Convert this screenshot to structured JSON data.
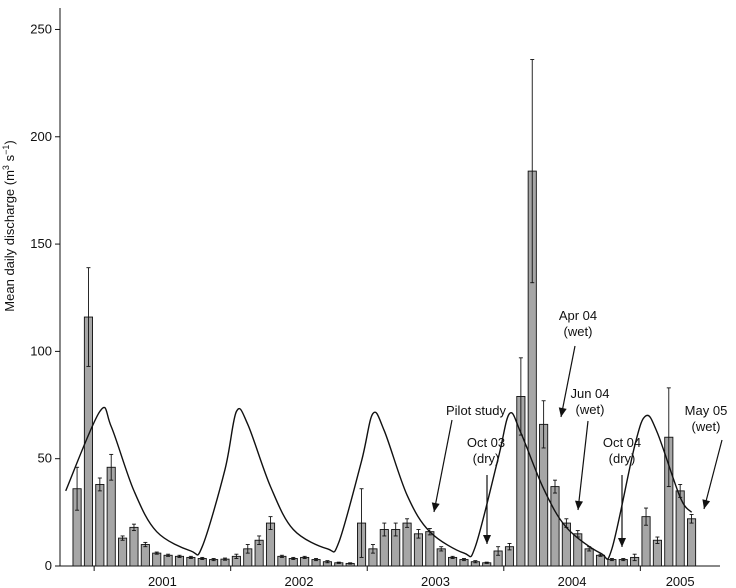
{
  "chart_data": {
    "type": "bar",
    "title": "",
    "xlabel": "",
    "ylabel": "Mean daily discharge (m³ s⁻¹)",
    "ylabel_parts": {
      "pre": "Mean daily discharge (m",
      "sup1": "3",
      "mid": " s",
      "sup2": "−1",
      "post": ")"
    },
    "ylim": [
      0,
      260
    ],
    "yticks": [
      0,
      50,
      100,
      150,
      200,
      250
    ],
    "year_labels": [
      "2001",
      "2002",
      "2003",
      "2004",
      "2005"
    ],
    "year_boundaries": [
      "2001-01",
      "2002-01",
      "2003-01",
      "2004-01",
      "2005-01"
    ],
    "x_start": "2000-10",
    "x_end": "2005-08",
    "bars": {
      "months": [
        "2000-11",
        "2000-12",
        "2001-01",
        "2001-02",
        "2001-03",
        "2001-04",
        "2001-05",
        "2001-06",
        "2001-07",
        "2001-08",
        "2001-09",
        "2001-10",
        "2001-11",
        "2001-12",
        "2002-01",
        "2002-02",
        "2002-03",
        "2002-04",
        "2002-05",
        "2002-06",
        "2002-07",
        "2002-08",
        "2002-09",
        "2002-10",
        "2002-11",
        "2002-12",
        "2003-01",
        "2003-02",
        "2003-03",
        "2003-04",
        "2003-05",
        "2003-06",
        "2003-07",
        "2003-08",
        "2003-09",
        "2003-10",
        "2003-11",
        "2003-12",
        "2004-01",
        "2004-02",
        "2004-03",
        "2004-04",
        "2004-05",
        "2004-06",
        "2004-07",
        "2004-08",
        "2004-09",
        "2004-10",
        "2004-11",
        "2004-12",
        "2005-01",
        "2005-02",
        "2005-03",
        "2005-04",
        "2005-05"
      ],
      "values": [
        36,
        116,
        38,
        46,
        13,
        18,
        10,
        6,
        5,
        4.5,
        4,
        3.5,
        3,
        3.2,
        4.5,
        8,
        12,
        20,
        4.5,
        3.5,
        4,
        3,
        2,
        1.5,
        1.2,
        20,
        8,
        17,
        17,
        20,
        15,
        16,
        8,
        4,
        3,
        2,
        1.5,
        7,
        9,
        79,
        184,
        66,
        37,
        20,
        15,
        8,
        5,
        3,
        3,
        4,
        23,
        12,
        60,
        35,
        22
      ],
      "error_plus": [
        10,
        23,
        3,
        6,
        1,
        1.5,
        1,
        0.5,
        0.5,
        0.5,
        0.5,
        0.5,
        0.5,
        0.5,
        1,
        2,
        2,
        3,
        0.5,
        0.5,
        0.5,
        0.5,
        0.5,
        0.3,
        0.3,
        16,
        2,
        3,
        3,
        2,
        2,
        1.5,
        1,
        0.5,
        0.5,
        0.5,
        0.3,
        2,
        1.5,
        18,
        52,
        11,
        3,
        2,
        1.5,
        1,
        0.5,
        0.5,
        0.5,
        1.5,
        4,
        1.5,
        23,
        3,
        2
      ],
      "error_minus": [
        10,
        23,
        3,
        6,
        1,
        1.5,
        1,
        0.5,
        0.5,
        0.5,
        0.5,
        0.5,
        0.5,
        0.5,
        1,
        2,
        2,
        3,
        0.5,
        0.5,
        0.5,
        0.5,
        0.5,
        0.3,
        0.3,
        16,
        2,
        3,
        3,
        2,
        2,
        1.5,
        1,
        0.5,
        0.5,
        0.5,
        0.3,
        2,
        1.5,
        18,
        52,
        11,
        3,
        2,
        1.5,
        1,
        0.5,
        0.5,
        0.5,
        1.5,
        4,
        1.5,
        23,
        3,
        2
      ]
    },
    "curve": {
      "x": [
        "2000-10",
        "2001-01",
        "2001-02",
        "2001-04",
        "2001-06",
        "2001-09",
        "2001-10",
        "2001-12",
        "2002-01",
        "2002-02",
        "2002-04",
        "2002-06",
        "2002-09",
        "2002-10",
        "2002-12",
        "2003-01",
        "2003-02",
        "2003-04",
        "2003-06",
        "2003-09",
        "2003-10",
        "2003-12",
        "2004-01",
        "2004-02",
        "2004-04",
        "2004-06",
        "2004-09",
        "2004-10",
        "2004-12",
        "2005-01",
        "2005-02",
        "2005-04",
        "2005-05"
      ],
      "y": [
        35,
        72,
        65,
        35,
        16,
        7,
        9,
        45,
        72,
        66,
        37,
        17,
        8,
        11,
        49,
        71,
        63,
        33,
        16,
        6,
        9,
        50,
        71,
        62,
        36,
        18,
        6,
        8,
        56,
        70,
        62,
        32,
        25
      ]
    },
    "annotations": [
      {
        "text": [
          "Pilot study"
        ],
        "target_month": "2003-05",
        "target_y": 16
      },
      {
        "text": [
          "Oct 03",
          "(dry)"
        ],
        "target_month": "2003-10",
        "target_y": 8
      },
      {
        "text": [
          "Apr 04",
          "(wet)"
        ],
        "target_month": "2004-04",
        "target_y": 73
      },
      {
        "text": [
          "Jun 04",
          "(wet)"
        ],
        "target_month": "2004-06",
        "target_y": 22
      },
      {
        "text": [
          "Oct 04",
          "(dry)"
        ],
        "target_month": "2004-10",
        "target_y": 7
      },
      {
        "text": [
          "May 05",
          "(wet)"
        ],
        "target_month": "2005-05",
        "target_y": 25
      }
    ]
  }
}
